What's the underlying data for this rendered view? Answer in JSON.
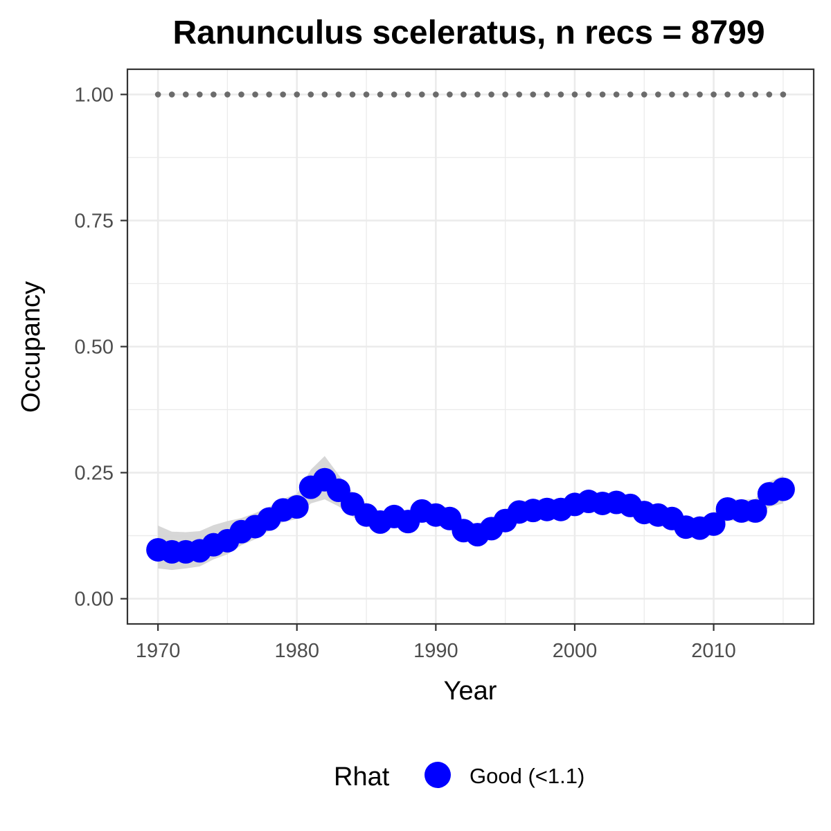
{
  "chart_data": {
    "type": "line",
    "title": "Ranunculus sceleratus, n recs = 8799",
    "xlabel": "Year",
    "ylabel": "Occupancy",
    "xlim": [
      1967.8,
      2017.2
    ],
    "ylim": [
      -0.05,
      1.05
    ],
    "x_ticks": [
      1970,
      1980,
      1990,
      2000,
      2010
    ],
    "x_tick_labels": [
      "1970",
      "1980",
      "1990",
      "2000",
      "2010"
    ],
    "y_ticks": [
      0,
      0.25,
      0.5,
      0.75,
      1.0
    ],
    "y_tick_labels": [
      "0.00",
      "0.25",
      "0.50",
      "0.75",
      "1.00"
    ],
    "grid": true,
    "legend_position": "bottom",
    "legend": {
      "title": "Rhat",
      "items": [
        {
          "label": "Good (<1.1)",
          "color": "#0000ff"
        }
      ]
    },
    "colors": {
      "points": "#0000ff",
      "ribbon": "#d3d3d3",
      "reference_dots": "#6b6b6b",
      "grid": "#ebebeb",
      "panel_border": "#333333"
    },
    "series": [
      {
        "x": [
          1970,
          1971,
          1972,
          1973,
          1974,
          1975,
          1976,
          1977,
          1978,
          1979,
          1980,
          1981,
          1982,
          1983,
          1984,
          1985,
          1986,
          1987,
          1988,
          1989,
          1990,
          1991,
          1992,
          1993,
          1994,
          1995,
          1996,
          1997,
          1998,
          1999,
          2000,
          2001,
          2002,
          2003,
          2004,
          2005,
          2006,
          2007,
          2008,
          2009,
          2010,
          2011,
          2012,
          2013,
          2014,
          2015
        ],
        "values": [
          0.097,
          0.093,
          0.093,
          0.095,
          0.107,
          0.115,
          0.133,
          0.143,
          0.158,
          0.176,
          0.182,
          0.221,
          0.236,
          0.215,
          0.188,
          0.166,
          0.152,
          0.163,
          0.153,
          0.174,
          0.166,
          0.159,
          0.135,
          0.127,
          0.139,
          0.155,
          0.172,
          0.175,
          0.177,
          0.177,
          0.187,
          0.193,
          0.189,
          0.191,
          0.185,
          0.171,
          0.166,
          0.159,
          0.142,
          0.14,
          0.148,
          0.178,
          0.174,
          0.174,
          0.208,
          0.217
        ],
        "lower": [
          0.06,
          0.057,
          0.06,
          0.064,
          0.078,
          0.088,
          0.106,
          0.118,
          0.135,
          0.152,
          0.158,
          0.189,
          0.197,
          0.183,
          0.163,
          0.145,
          0.134,
          0.143,
          0.135,
          0.154,
          0.146,
          0.139,
          0.116,
          0.107,
          0.12,
          0.135,
          0.153,
          0.156,
          0.158,
          0.16,
          0.169,
          0.174,
          0.171,
          0.172,
          0.166,
          0.152,
          0.147,
          0.14,
          0.124,
          0.121,
          0.128,
          0.156,
          0.153,
          0.152,
          0.182,
          0.189
        ],
        "upper": [
          0.145,
          0.133,
          0.132,
          0.134,
          0.146,
          0.154,
          0.16,
          0.17,
          0.182,
          0.198,
          0.208,
          0.256,
          0.283,
          0.246,
          0.211,
          0.189,
          0.172,
          0.184,
          0.173,
          0.194,
          0.187,
          0.18,
          0.156,
          0.148,
          0.16,
          0.177,
          0.193,
          0.196,
          0.198,
          0.197,
          0.206,
          0.213,
          0.209,
          0.211,
          0.205,
          0.191,
          0.186,
          0.179,
          0.162,
          0.16,
          0.17,
          0.199,
          0.196,
          0.198,
          0.232,
          0.244
        ]
      },
      {
        "x": [
          1970,
          1971,
          1972,
          1973,
          1974,
          1975,
          1976,
          1977,
          1978,
          1979,
          1980,
          1981,
          1982,
          1983,
          1984,
          1985,
          1986,
          1987,
          1988,
          1989,
          1990,
          1991,
          1992,
          1993,
          1994,
          1995,
          1996,
          1997,
          1998,
          1999,
          2000,
          2001,
          2002,
          2003,
          2004,
          2005,
          2006,
          2007,
          2008,
          2009,
          2010,
          2011,
          2012,
          2013,
          2014,
          2015
        ],
        "values": [
          1,
          1,
          1,
          1,
          1,
          1,
          1,
          1,
          1,
          1,
          1,
          1,
          1,
          1,
          1,
          1,
          1,
          1,
          1,
          1,
          1,
          1,
          1,
          1,
          1,
          1,
          1,
          1,
          1,
          1,
          1,
          1,
          1,
          1,
          1,
          1,
          1,
          1,
          1,
          1,
          1,
          1,
          1,
          1,
          1,
          1
        ]
      }
    ]
  }
}
